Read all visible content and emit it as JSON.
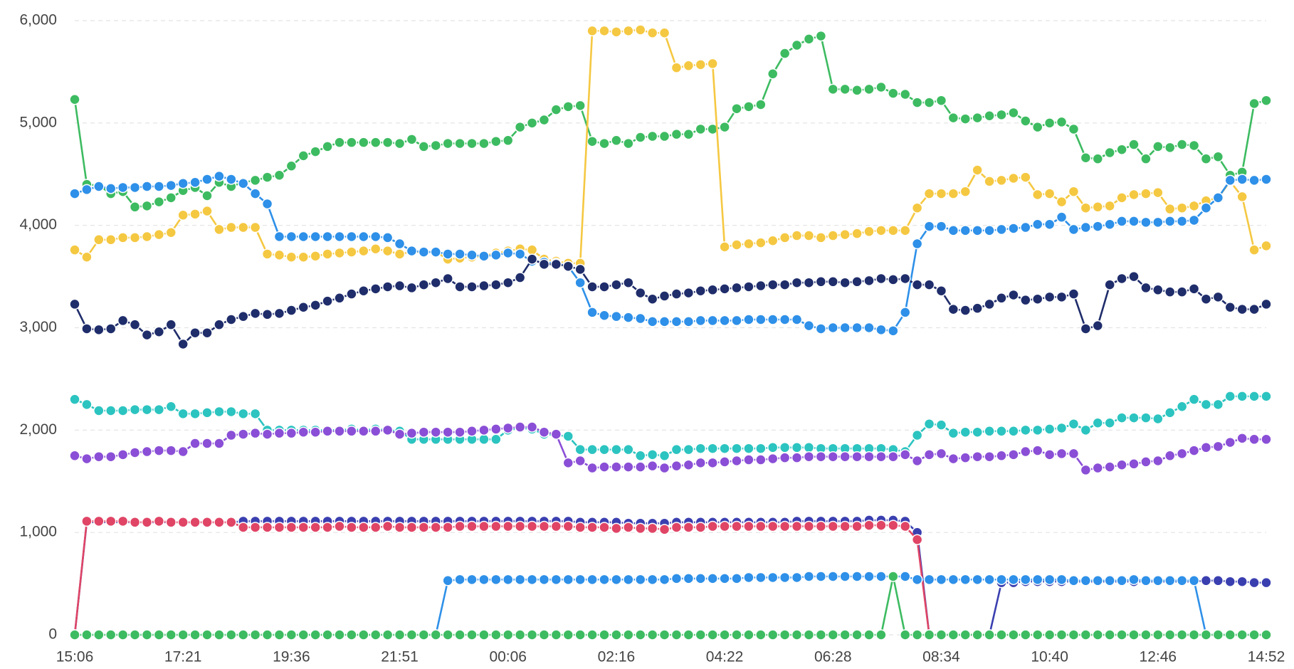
{
  "chart_data": {
    "type": "line",
    "categories": [
      "15:06",
      null,
      null,
      null,
      null,
      null,
      null,
      null,
      null,
      "17:21",
      null,
      null,
      null,
      null,
      null,
      null,
      null,
      null,
      "19:36",
      null,
      null,
      null,
      null,
      null,
      null,
      null,
      null,
      "21:51",
      null,
      null,
      null,
      null,
      null,
      null,
      null,
      null,
      "00:06",
      null,
      null,
      null,
      null,
      null,
      null,
      null,
      null,
      "02:16",
      null,
      null,
      null,
      null,
      null,
      null,
      null,
      null,
      "04:22",
      null,
      null,
      null,
      null,
      null,
      null,
      null,
      null,
      "06:28",
      null,
      null,
      null,
      null,
      null,
      null,
      null,
      null,
      "08:34",
      null,
      null,
      null,
      null,
      null,
      null,
      null,
      null,
      "10:40",
      null,
      null,
      null,
      null,
      null,
      null,
      null,
      null,
      "12:46",
      null,
      null,
      null,
      null,
      null,
      null,
      null,
      null,
      "14:52"
    ],
    "ylim": [
      0,
      6000
    ],
    "yticks": [
      0,
      {
        "value": 1000,
        "label": "1,000"
      },
      {
        "value": 2000,
        "label": "2,000"
      },
      {
        "value": 3000,
        "label": "3,000"
      },
      {
        "value": 4000,
        "label": "4,000"
      },
      {
        "value": 5000,
        "label": "5,000"
      },
      {
        "value": 6000,
        "label": "6,000"
      }
    ],
    "grid": true,
    "series": [
      {
        "color": "#3dbb61",
        "values": [
          5230,
          4400,
          4390,
          4310,
          4330,
          4180,
          4190,
          4230,
          4270,
          4340,
          4370,
          4290,
          4420,
          4380,
          4420,
          4440,
          4470,
          4490,
          4580,
          4680,
          4720,
          4770,
          4810,
          4810,
          4810,
          4810,
          4810,
          4800,
          4840,
          4770,
          4780,
          4800,
          4800,
          4800,
          4800,
          4820,
          4830,
          4960,
          5000,
          5030,
          5130,
          5160,
          5170,
          4820,
          4800,
          4830,
          4800,
          4860,
          4870,
          4870,
          4890,
          4890,
          4940,
          4940,
          4960,
          5140,
          5160,
          5180,
          5480,
          5680,
          5760,
          5820,
          5850,
          5330,
          5330,
          5320,
          5330,
          5350,
          5290,
          5280,
          5200,
          5200,
          5220,
          5050,
          5040,
          5050,
          5070,
          5080,
          5100,
          5020,
          4960,
          5000,
          5010,
          4940,
          4660,
          4650,
          4710,
          4740,
          4790,
          4650,
          4770,
          4760,
          4790,
          4780,
          4650,
          4670,
          4490,
          4520,
          5190,
          5220
        ]
      },
      {
        "color": "#f5c842",
        "values": [
          3760,
          3690,
          3860,
          3860,
          3880,
          3880,
          3890,
          3910,
          3930,
          4100,
          4110,
          4140,
          3960,
          3980,
          3980,
          3980,
          3720,
          3710,
          3690,
          3690,
          3700,
          3720,
          3730,
          3740,
          3750,
          3770,
          3750,
          3720,
          3740,
          3740,
          3740,
          3670,
          3680,
          3690,
          3700,
          3730,
          3750,
          3770,
          3760,
          3670,
          3650,
          3630,
          3630,
          5900,
          5900,
          5890,
          5900,
          5910,
          5880,
          5880,
          5540,
          5560,
          5570,
          5580,
          3790,
          3810,
          3820,
          3830,
          3850,
          3880,
          3900,
          3900,
          3880,
          3900,
          3910,
          3920,
          3940,
          3950,
          3950,
          3950,
          4170,
          4310,
          4310,
          4310,
          4330,
          4540,
          4430,
          4440,
          4460,
          4470,
          4300,
          4310,
          4230,
          4330,
          4170,
          4180,
          4190,
          4270,
          4300,
          4310,
          4320,
          4160,
          4170,
          4190,
          4240,
          4270,
          4430,
          4280,
          3760,
          3800
        ]
      },
      {
        "color": "#2e90e8",
        "values": [
          4310,
          4350,
          4380,
          4360,
          4370,
          4370,
          4380,
          4380,
          4390,
          4410,
          4420,
          4450,
          4480,
          4450,
          4410,
          4310,
          4210,
          3890,
          3890,
          3890,
          3890,
          3890,
          3890,
          3890,
          3890,
          3890,
          3880,
          3820,
          3750,
          3740,
          3740,
          3720,
          3720,
          3710,
          3700,
          3710,
          3730,
          3720,
          3650,
          3640,
          3630,
          3600,
          3440,
          3150,
          3120,
          3110,
          3100,
          3090,
          3060,
          3060,
          3060,
          3060,
          3070,
          3070,
          3070,
          3070,
          3080,
          3080,
          3080,
          3080,
          3080,
          3020,
          2990,
          3000,
          3000,
          3000,
          3000,
          2980,
          2970,
          3150,
          3820,
          3990,
          3990,
          3950,
          3950,
          3950,
          3950,
          3960,
          3970,
          3980,
          4010,
          4010,
          4080,
          3960,
          3980,
          3990,
          4010,
          4040,
          4040,
          4030,
          4030,
          4040,
          4040,
          4050,
          4170,
          4270,
          4440,
          4450,
          4440,
          4450
        ]
      },
      {
        "color": "#1f2d6b",
        "values": [
          3230,
          2990,
          2980,
          2990,
          3070,
          3030,
          2930,
          2960,
          3030,
          2840,
          2950,
          2950,
          3030,
          3080,
          3110,
          3140,
          3130,
          3140,
          3170,
          3200,
          3220,
          3260,
          3290,
          3330,
          3360,
          3380,
          3400,
          3410,
          3390,
          3420,
          3440,
          3480,
          3400,
          3400,
          3410,
          3420,
          3440,
          3490,
          3670,
          3620,
          3620,
          3600,
          3570,
          3400,
          3400,
          3420,
          3440,
          3340,
          3280,
          3310,
          3330,
          3340,
          3360,
          3370,
          3380,
          3390,
          3400,
          3410,
          3420,
          3420,
          3440,
          3440,
          3450,
          3450,
          3440,
          3450,
          3460,
          3480,
          3470,
          3480,
          3420,
          3420,
          3360,
          3180,
          3170,
          3190,
          3230,
          3290,
          3320,
          3270,
          3280,
          3300,
          3300,
          3330,
          2990,
          3020,
          3420,
          3480,
          3500,
          3390,
          3370,
          3350,
          3350,
          3380,
          3280,
          3300,
          3200,
          3180,
          3180,
          3230
        ]
      },
      {
        "color": "#2cc4c0",
        "values": [
          2300,
          2250,
          2190,
          2190,
          2190,
          2200,
          2200,
          2200,
          2230,
          2160,
          2160,
          2170,
          2180,
          2180,
          2160,
          2160,
          2000,
          2000,
          2000,
          2000,
          2000,
          2000,
          2000,
          2010,
          2000,
          2010,
          2000,
          1990,
          1910,
          1910,
          1910,
          1910,
          1910,
          1910,
          1910,
          1910,
          2000,
          2020,
          2010,
          1960,
          1950,
          1940,
          1810,
          1810,
          1810,
          1810,
          1810,
          1750,
          1760,
          1750,
          1810,
          1810,
          1820,
          1820,
          1820,
          1820,
          1820,
          1820,
          1830,
          1830,
          1830,
          1830,
          1820,
          1820,
          1820,
          1820,
          1820,
          1820,
          1810,
          1790,
          1950,
          2060,
          2050,
          1970,
          1980,
          1980,
          1990,
          1990,
          1990,
          2000,
          2000,
          2010,
          2020,
          2060,
          2000,
          2070,
          2070,
          2120,
          2120,
          2120,
          2110,
          2170,
          2230,
          2300,
          2250,
          2250,
          2330,
          2330,
          2330,
          2330
        ]
      },
      {
        "color": "#8a4fd6",
        "values": [
          1750,
          1720,
          1740,
          1740,
          1760,
          1780,
          1790,
          1800,
          1800,
          1790,
          1870,
          1870,
          1870,
          1950,
          1960,
          1970,
          1960,
          1970,
          1970,
          1980,
          1980,
          1990,
          1990,
          1990,
          1990,
          1990,
          2000,
          1960,
          1970,
          1980,
          1980,
          1980,
          1980,
          1990,
          2000,
          2010,
          2020,
          2030,
          2030,
          1980,
          1960,
          1680,
          1700,
          1630,
          1640,
          1640,
          1640,
          1640,
          1650,
          1630,
          1650,
          1660,
          1680,
          1680,
          1690,
          1700,
          1710,
          1710,
          1720,
          1730,
          1730,
          1740,
          1740,
          1740,
          1740,
          1740,
          1740,
          1740,
          1740,
          1760,
          1700,
          1760,
          1770,
          1720,
          1730,
          1740,
          1740,
          1750,
          1760,
          1790,
          1800,
          1760,
          1770,
          1770,
          1610,
          1630,
          1640,
          1660,
          1670,
          1690,
          1700,
          1750,
          1770,
          1800,
          1830,
          1840,
          1880,
          1920,
          1910,
          1910
        ]
      },
      {
        "color": "#3a3fb0",
        "values": [
          0,
          1100,
          1100,
          1100,
          1100,
          1100,
          1100,
          1100,
          1100,
          1100,
          1100,
          1100,
          1100,
          1100,
          1110,
          1110,
          1110,
          1110,
          1110,
          1110,
          1110,
          1110,
          1110,
          1110,
          1110,
          1110,
          1110,
          1110,
          1110,
          1110,
          1110,
          1110,
          1110,
          1110,
          1110,
          1110,
          1110,
          1110,
          1110,
          1110,
          1110,
          1110,
          1100,
          1100,
          1100,
          1100,
          1090,
          1090,
          1090,
          1090,
          1100,
          1100,
          1100,
          1100,
          1100,
          1100,
          1100,
          1100,
          1100,
          1100,
          1110,
          1110,
          1110,
          1110,
          1110,
          1110,
          1120,
          1120,
          1120,
          1110,
          1000,
          0,
          0,
          0,
          0,
          0,
          0,
          510,
          510,
          520,
          520,
          520,
          520,
          520,
          520,
          520,
          520,
          520,
          520,
          520,
          520,
          520,
          520,
          520,
          530,
          530,
          520,
          520,
          510,
          510
        ]
      },
      {
        "color": "#e04566",
        "values": [
          0,
          1110,
          1110,
          1110,
          1110,
          1100,
          1100,
          1110,
          1100,
          1100,
          1100,
          1100,
          1100,
          1100,
          1050,
          1050,
          1050,
          1050,
          1050,
          1050,
          1050,
          1050,
          1060,
          1050,
          1050,
          1050,
          1060,
          1050,
          1050,
          1050,
          1050,
          1050,
          1060,
          1060,
          1060,
          1060,
          1060,
          1060,
          1060,
          1060,
          1060,
          1060,
          1050,
          1050,
          1050,
          1040,
          1050,
          1040,
          1040,
          1030,
          1050,
          1050,
          1050,
          1060,
          1060,
          1060,
          1060,
          1060,
          1060,
          1060,
          1060,
          1060,
          1060,
          1060,
          1060,
          1060,
          1070,
          1070,
          1070,
          1060,
          930,
          0,
          0,
          0,
          0,
          0,
          0,
          0,
          0,
          0,
          0,
          0,
          0,
          0,
          0,
          0,
          0,
          0,
          0,
          0,
          0,
          0,
          0,
          0,
          0,
          0,
          0,
          0,
          0,
          0
        ]
      },
      {
        "color": "#2e90e8",
        "values": [
          0,
          0,
          0,
          0,
          0,
          0,
          0,
          0,
          0,
          0,
          0,
          0,
          0,
          0,
          0,
          0,
          0,
          0,
          0,
          0,
          0,
          0,
          0,
          0,
          0,
          0,
          0,
          0,
          0,
          0,
          0,
          530,
          540,
          540,
          540,
          540,
          540,
          540,
          540,
          540,
          540,
          540,
          540,
          540,
          540,
          540,
          540,
          540,
          540,
          540,
          550,
          550,
          550,
          550,
          550,
          550,
          560,
          560,
          560,
          560,
          560,
          570,
          570,
          570,
          570,
          570,
          570,
          570,
          570,
          570,
          540,
          540,
          540,
          540,
          540,
          540,
          540,
          540,
          540,
          540,
          540,
          540,
          540,
          530,
          530,
          530,
          530,
          530,
          540,
          530,
          530,
          530,
          530,
          530,
          0,
          0,
          0,
          0,
          0,
          0
        ]
      },
      {
        "color": "#3dbb61",
        "values": [
          0,
          0,
          0,
          0,
          0,
          0,
          0,
          0,
          0,
          0,
          0,
          0,
          0,
          0,
          0,
          0,
          0,
          0,
          0,
          0,
          0,
          0,
          0,
          0,
          0,
          0,
          0,
          0,
          0,
          0,
          0,
          0,
          0,
          0,
          0,
          0,
          0,
          0,
          0,
          0,
          0,
          0,
          0,
          0,
          0,
          0,
          0,
          0,
          0,
          0,
          0,
          0,
          0,
          0,
          0,
          0,
          0,
          0,
          0,
          0,
          0,
          0,
          0,
          0,
          0,
          0,
          0,
          0,
          570,
          0,
          0,
          0,
          0,
          0,
          0,
          0,
          0,
          0,
          0,
          0,
          0,
          0,
          0,
          0,
          0,
          0,
          0,
          0,
          0,
          0,
          0,
          0,
          0,
          0,
          0,
          0,
          0,
          0,
          0,
          0
        ]
      }
    ]
  }
}
